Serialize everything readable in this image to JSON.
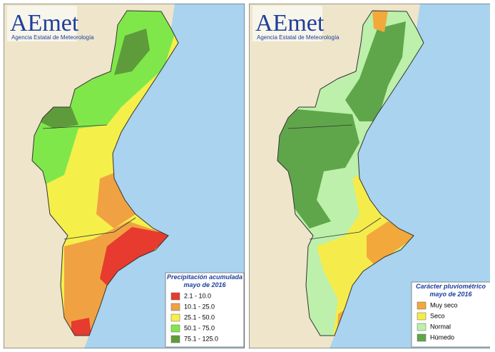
{
  "maps": [
    {
      "logo": {
        "brand": "AEmet",
        "agency": "Agencia Estatal de Meteorología"
      },
      "legend": {
        "title": "Precipitación acumulada",
        "subtitle": "mayo de 2016",
        "items": [
          {
            "label": "2.1 - 10.0",
            "color": "#e63b2e"
          },
          {
            "label": "10.1 - 25.0",
            "color": "#f0a243"
          },
          {
            "label": "25.1 - 50.0",
            "color": "#f5ef4a"
          },
          {
            "label": "50.1 - 75.0",
            "color": "#80e74b"
          },
          {
            "label": "75.1 - 125.0",
            "color": "#5e9c3b"
          }
        ]
      }
    },
    {
      "logo": {
        "brand": "AEmet",
        "agency": "Agencia Estatal de Meteorología"
      },
      "legend": {
        "title": "Carácter pluviométrico",
        "subtitle": "mayo de 2016",
        "items": [
          {
            "label": "Muy seco",
            "color": "#f2a83b"
          },
          {
            "label": "Seco",
            "color": "#f5ec4c"
          },
          {
            "label": "Normal",
            "color": "#bdf0aa"
          },
          {
            "label": "Húmedo",
            "color": "#5fa64a"
          }
        ]
      }
    }
  ]
}
